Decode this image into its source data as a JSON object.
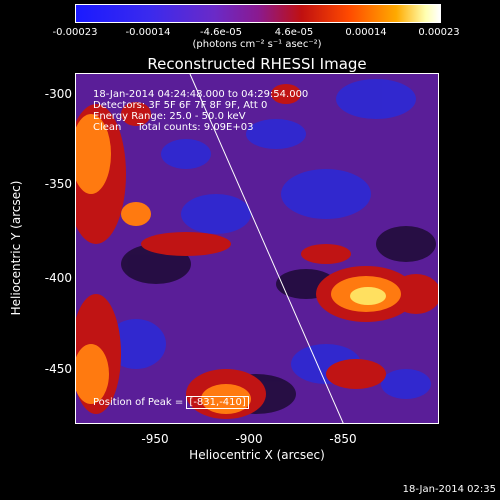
{
  "colorbar": {
    "ticks": [
      "-0.00023",
      "-0.00014",
      "-4.6e-05",
      "4.6e-05",
      "0.00014",
      "0.00023"
    ],
    "units": "(photons cm⁻² s⁻¹ asec⁻²)"
  },
  "title": "Reconstructed RHESSI Image",
  "info": {
    "line1": "18-Jan-2014 04:24:48.000 to 04:29:54.000",
    "line2": "Detectors: 3F 5F 6F 7F 8F 9F, Att 0",
    "line3": "Energy Range: 25.0 - 50.0 keV",
    "line4": "Clean     Total counts: 9.09E+03"
  },
  "peak": {
    "label": "Position of Peak =",
    "value": "[-831,-410]"
  },
  "axes": {
    "xlabel": "Heliocentric X (arcsec)",
    "ylabel": "Heliocentric Y (arcsec)",
    "xticks": [
      "-950",
      "-900",
      "-850"
    ],
    "yticks": [
      "-300",
      "-350",
      "-400",
      "-450"
    ]
  },
  "timestamp": "18-Jan-2014 02:35",
  "colors": {
    "background": "#000000",
    "purple": "#5a1e98",
    "blue": "#2a2ad8",
    "red": "#c01414",
    "orange": "#ff7a10",
    "yellow": "#ffe060"
  }
}
